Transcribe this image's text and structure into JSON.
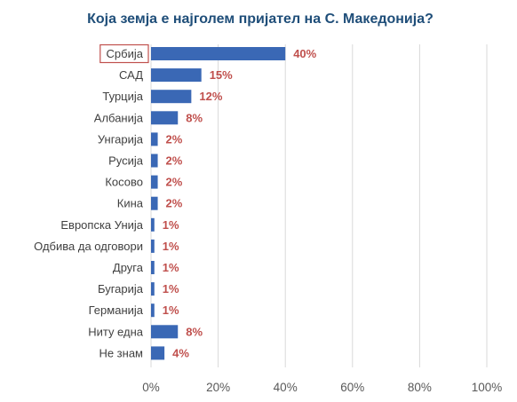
{
  "chart_data": {
    "type": "bar",
    "orientation": "horizontal",
    "title": "Која земја е најголем пријател на С. Македонија?",
    "categories": [
      "Србија",
      "САД",
      "Турција",
      "Албанија",
      "Унгарија",
      "Русија",
      "Косово",
      "Кина",
      "Европска Унија",
      "Одбива да одговори",
      "Друга",
      "Бугарија",
      "Германија",
      "Ниту една",
      "Не знам"
    ],
    "values": [
      40,
      15,
      12,
      8,
      2,
      2,
      2,
      2,
      1,
      1,
      1,
      1,
      1,
      8,
      4
    ],
    "value_labels": [
      "40%",
      "15%",
      "12%",
      "8%",
      "2%",
      "2%",
      "2%",
      "2%",
      "1%",
      "1%",
      "1%",
      "1%",
      "1%",
      "8%",
      "4%"
    ],
    "highlighted_category": "Србија",
    "xlim": [
      0,
      100
    ],
    "xticks": [
      0,
      20,
      40,
      60,
      80,
      100
    ],
    "xtick_labels": [
      "0%",
      "20%",
      "40%",
      "60%",
      "80%",
      "100%"
    ],
    "grid": true,
    "colors": {
      "bar": "#3a68b5",
      "data_label": "#c0504d",
      "title": "#1f4e79",
      "highlight_box": "#c0504d"
    }
  }
}
